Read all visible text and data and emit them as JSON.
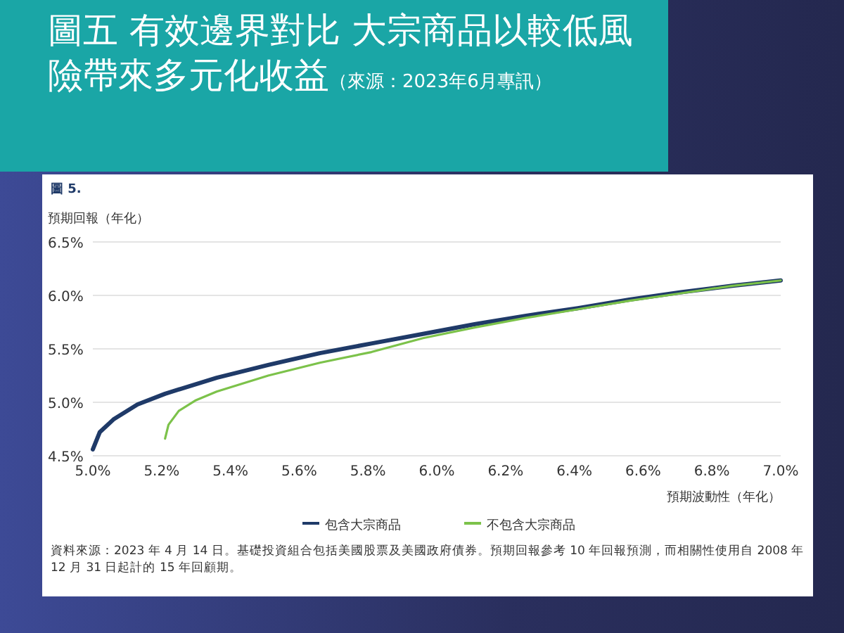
{
  "chart_data": {
    "type": "line",
    "title": "圖五 有效邊界對比 大宗商品以較低風險帶來多元化收益",
    "subtitle": "（來源：2023年6月專訊）",
    "xlabel": "預期波動性（年化）",
    "ylabel": "預期回報（年化）",
    "annotations": [
      "圖 5.",
      "資料來源：2023 年 4 月 14 日。基礎投資組合包括美國股票及美國政府債券。預期回報參考 10 年回報預測，而相關性使用自 2008 年 12 月 31 日起計的 15 年回顧期。"
    ],
    "xlim": [
      5.0,
      7.0
    ],
    "ylim": [
      4.5,
      6.5
    ],
    "xticks": [
      {
        "value": 5.0,
        "label": "5.0%"
      },
      {
        "value": 5.2,
        "label": "5.2%"
      },
      {
        "value": 5.4,
        "label": "5.4%"
      },
      {
        "value": 5.6,
        "label": "5.6%"
      },
      {
        "value": 5.8,
        "label": "5.8%"
      },
      {
        "value": 6.0,
        "label": "6.0%"
      },
      {
        "value": 6.2,
        "label": "6.2%"
      },
      {
        "value": 6.4,
        "label": "6.4%"
      },
      {
        "value": 6.6,
        "label": "6.6%"
      },
      {
        "value": 6.8,
        "label": "6.8%"
      },
      {
        "value": 7.0,
        "label": "7.0%"
      }
    ],
    "yticks": [
      {
        "value": 4.5,
        "label": "4.5%"
      },
      {
        "value": 5.0,
        "label": "5.0%"
      },
      {
        "value": 5.5,
        "label": "5.5%"
      },
      {
        "value": 6.0,
        "label": "6.0%"
      },
      {
        "value": 6.5,
        "label": "6.5%"
      }
    ],
    "grid": "y",
    "legend": "bottom",
    "series": [
      {
        "name": "包含大宗商品",
        "color": "#1f3a68",
        "x": [
          5.0,
          5.02,
          5.06,
          5.13,
          5.21,
          5.36,
          5.51,
          5.66,
          5.81,
          5.96,
          6.11,
          6.26,
          6.41,
          6.56,
          6.71,
          6.86,
          7.0
        ],
        "values": [
          4.56,
          4.72,
          4.84,
          4.98,
          5.08,
          5.23,
          5.35,
          5.46,
          5.55,
          5.64,
          5.73,
          5.81,
          5.88,
          5.96,
          6.03,
          6.09,
          6.14
        ]
      },
      {
        "name": "不包含大宗商品",
        "color": "#7cc24a",
        "x": [
          5.21,
          5.22,
          5.25,
          5.3,
          5.36,
          5.51,
          5.66,
          5.81,
          5.96,
          6.11,
          6.26,
          6.41,
          6.56,
          6.71,
          6.86,
          7.0
        ],
        "values": [
          4.66,
          4.79,
          4.92,
          5.02,
          5.1,
          5.25,
          5.37,
          5.47,
          5.6,
          5.7,
          5.79,
          5.87,
          5.95,
          6.02,
          6.09,
          6.14
        ]
      }
    ]
  }
}
